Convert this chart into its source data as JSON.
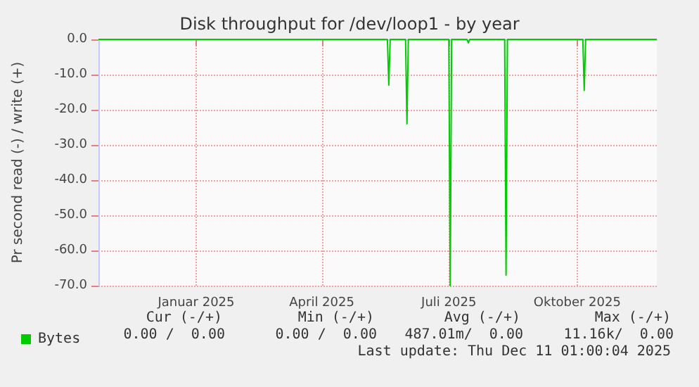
{
  "chart_data": {
    "type": "line",
    "title": "Disk throughput for /dev/loop1 - by year",
    "ylabel": "Pr second read (-) / write (+)",
    "x": [
      "2024-11-06",
      "2025-06-01",
      "2025-06-02",
      "2025-06-03",
      "2025-06-14",
      "2025-06-15",
      "2025-06-16",
      "2025-07-15",
      "2025-07-16",
      "2025-07-17",
      "2025-07-28",
      "2025-07-29",
      "2025-07-30",
      "2025-08-24",
      "2025-08-25",
      "2025-08-26",
      "2025-10-19",
      "2025-10-20",
      "2025-10-21",
      "2025-12-11"
    ],
    "series": [
      {
        "name": "Bytes",
        "color": "#00cc00",
        "values": [
          0,
          0,
          -13,
          0,
          0,
          -24,
          0,
          0,
          -70,
          0,
          0,
          -1,
          0,
          0,
          -67,
          0,
          0,
          -14.5,
          0,
          0
        ]
      }
    ],
    "xlim": [
      "2024-11-06",
      "2025-12-11"
    ],
    "xticks": [
      {
        "value": "2025-01-15",
        "label": "Januar 2025"
      },
      {
        "value": "2025-04-15",
        "label": "April 2025"
      },
      {
        "value": "2025-07-15",
        "label": "Juli 2025"
      },
      {
        "value": "2025-10-15",
        "label": "Oktober 2025"
      }
    ],
    "ylim": [
      -70,
      0
    ],
    "yticks": [
      {
        "value": -70,
        "label": "-70.0"
      },
      {
        "value": -60,
        "label": "-60.0"
      },
      {
        "value": -50,
        "label": "-50.0"
      },
      {
        "value": -40,
        "label": "-40.0"
      },
      {
        "value": -30,
        "label": "-30.0"
      },
      {
        "value": -20,
        "label": "-20.0"
      },
      {
        "value": -10,
        "label": "-10.0"
      },
      {
        "value": 0,
        "label": "0.0"
      }
    ],
    "grid": true,
    "legend": "bottom left",
    "marker": "none",
    "line_style": "solid",
    "annotations": [
      "Cur (-/+)",
      "Min (-/+)",
      "Avg (-/+)",
      "Max (-/+)",
      "0.00 /  0.00",
      "0.00 /  0.00",
      "487.01m/  0.00",
      "11.16k/  0.00",
      "Last update: Thu Dec 11 01:00:04 2025"
    ]
  }
}
